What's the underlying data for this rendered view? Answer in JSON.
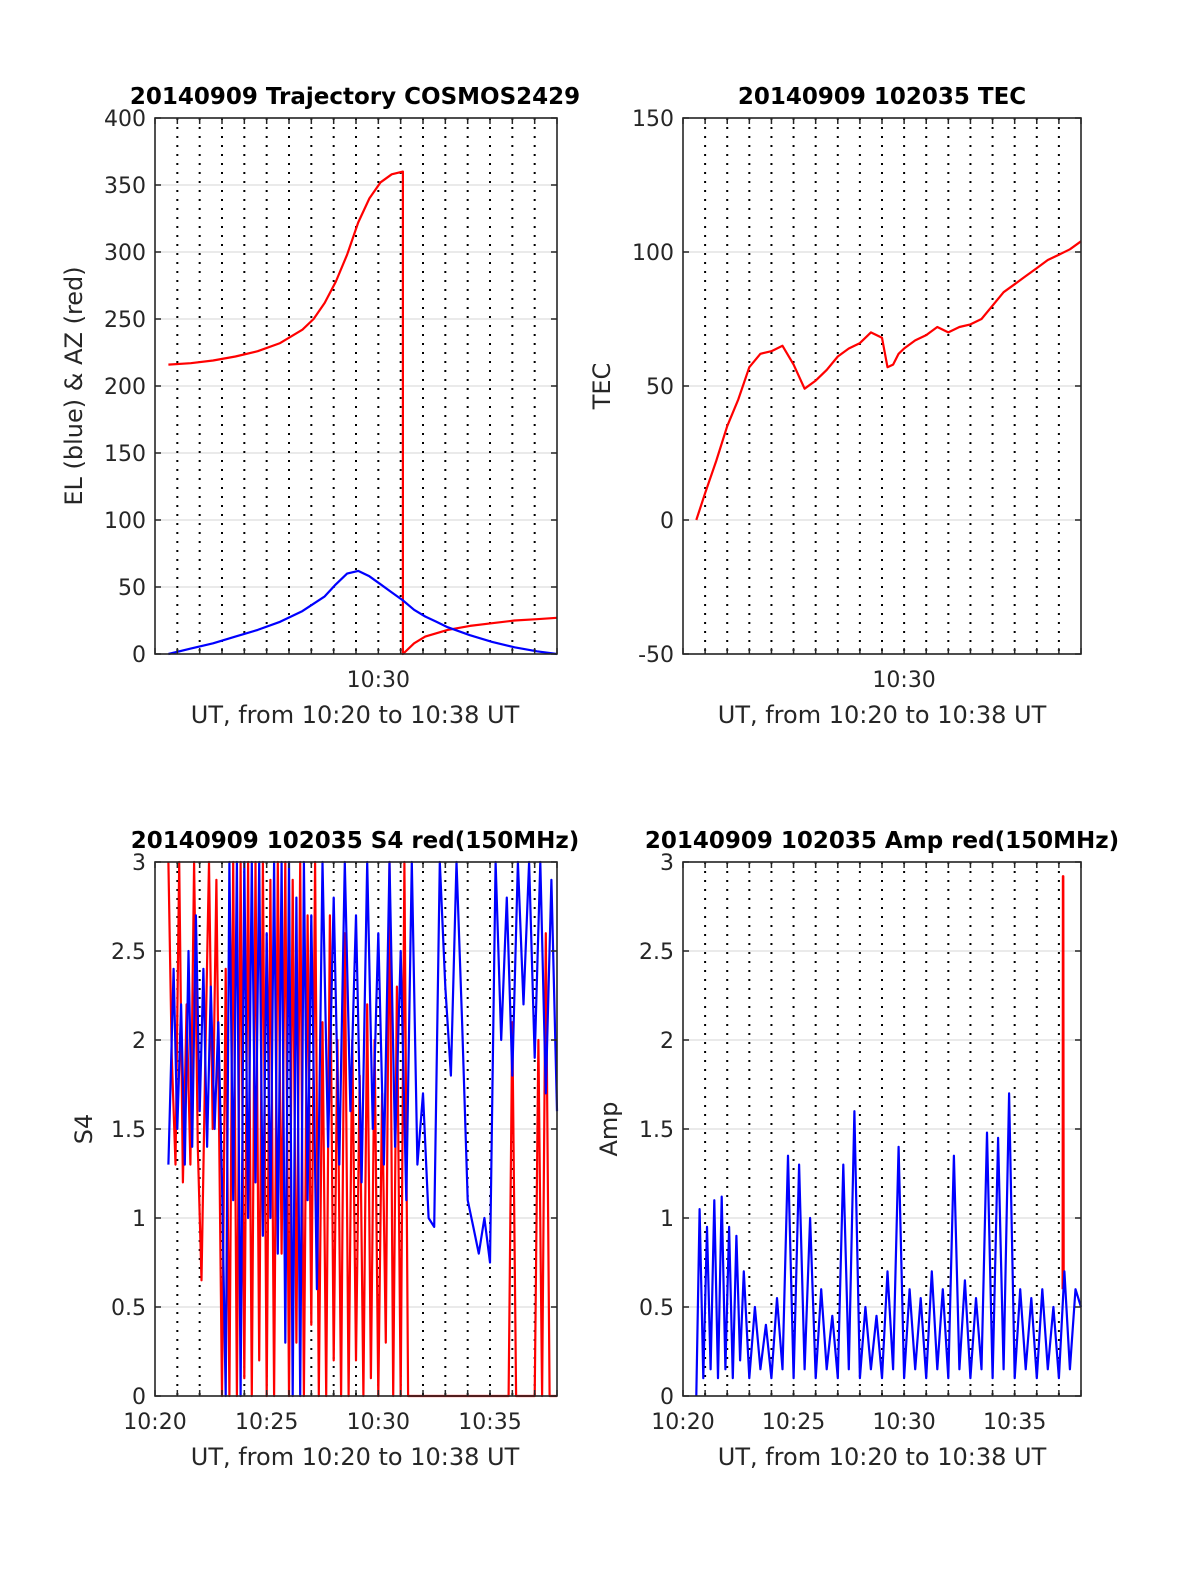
{
  "chart_data": [
    {
      "id": "trajectory",
      "type": "line",
      "title": "20140909 Trajectory COSMOS2429",
      "xlabel": "UT, from 10:20 to 10:38 UT",
      "ylabel": "EL (blue) & AZ (red)",
      "xlim": [
        "10:20",
        "10:38"
      ],
      "ylim": [
        0,
        400
      ],
      "yticks": [
        0,
        50,
        100,
        150,
        200,
        250,
        300,
        350,
        400
      ],
      "xtick_labels": [
        {
          "t": "10:30",
          "label": "10:30"
        }
      ],
      "grid": true,
      "series": [
        {
          "color": "#ff0000",
          "x": [
            "10:20:36",
            "10:21:36",
            "10:22:36",
            "10:23:36",
            "10:24:36",
            "10:25:36",
            "10:26:36",
            "10:27:06",
            "10:27:36",
            "10:28:06",
            "10:28:36",
            "10:29:06",
            "10:29:36",
            "10:30:06",
            "10:30:36",
            "10:31:06",
            "10:31:06",
            "10:31:36",
            "10:32:06",
            "10:33:06",
            "10:34:06",
            "10:35:06",
            "10:36:06",
            "10:37:06",
            "10:38:00"
          ],
          "values": [
            216,
            217,
            219,
            222,
            226,
            232,
            242,
            250,
            262,
            278,
            298,
            322,
            340,
            352,
            358,
            360,
            0,
            8,
            13,
            18,
            21,
            23,
            25,
            26,
            27
          ]
        },
        {
          "color": "#0000ff",
          "x": [
            "10:20:36",
            "10:21:36",
            "10:22:36",
            "10:23:36",
            "10:24:36",
            "10:25:36",
            "10:26:36",
            "10:27:36",
            "10:28:06",
            "10:28:36",
            "10:29:06",
            "10:29:36",
            "10:30:06",
            "10:30:36",
            "10:31:06",
            "10:31:36",
            "10:32:06",
            "10:32:36",
            "10:33:06",
            "10:34:06",
            "10:35:06",
            "10:36:06",
            "10:37:06",
            "10:38:00"
          ],
          "values": [
            0,
            4,
            8,
            13,
            18,
            24,
            32,
            43,
            52,
            60,
            62,
            58,
            52,
            46,
            40,
            33,
            28,
            24,
            20,
            14,
            9,
            5,
            2,
            0
          ]
        }
      ]
    },
    {
      "id": "tec",
      "type": "line",
      "title": "20140909 102035 TEC",
      "xlabel": "UT, from 10:20 to 10:38 UT",
      "ylabel": "TEC",
      "xlim": [
        "10:20",
        "10:38"
      ],
      "ylim": [
        -50,
        150
      ],
      "yticks": [
        -50,
        0,
        50,
        100,
        150
      ],
      "xtick_labels": [
        {
          "t": "10:30",
          "label": "10:30"
        }
      ],
      "grid": true,
      "series": [
        {
          "color": "#ff0000",
          "x": [
            "10:20:36",
            "10:21:00",
            "10:21:30",
            "10:22:00",
            "10:22:30",
            "10:23:00",
            "10:23:30",
            "10:24:00",
            "10:24:30",
            "10:25:00",
            "10:25:30",
            "10:26:00",
            "10:26:30",
            "10:27:00",
            "10:27:30",
            "10:28:00",
            "10:28:30",
            "10:29:00",
            "10:29:15",
            "10:29:30",
            "10:29:45",
            "10:30:00",
            "10:30:30",
            "10:31:00",
            "10:31:30",
            "10:32:00",
            "10:32:30",
            "10:33:00",
            "10:33:30",
            "10:34:00",
            "10:34:30",
            "10:35:00",
            "10:35:30",
            "10:36:00",
            "10:36:30",
            "10:37:00",
            "10:37:30",
            "10:38:00"
          ],
          "values": [
            0,
            10,
            22,
            35,
            45,
            57,
            62,
            63,
            65,
            58,
            49,
            52,
            56,
            61,
            64,
            66,
            70,
            68,
            57,
            58,
            62,
            64,
            67,
            69,
            72,
            70,
            72,
            73,
            75,
            80,
            85,
            88,
            91,
            94,
            97,
            99,
            101,
            104
          ]
        }
      ]
    },
    {
      "id": "s4",
      "type": "line",
      "title": "20140909 102035 S4 red(150MHz)",
      "xlabel": "UT, from 10:20 to 10:38 UT",
      "ylabel": "S4",
      "xlim": [
        "10:20",
        "10:38"
      ],
      "ylim": [
        0,
        3
      ],
      "yticks": [
        0,
        0.5,
        1,
        1.5,
        2,
        2.5,
        3
      ],
      "xtick_labels": [
        {
          "t": "10:20",
          "label": "10:20"
        },
        {
          "t": "10:25",
          "label": "10:25"
        },
        {
          "t": "10:30",
          "label": "10:30"
        },
        {
          "t": "10:35",
          "label": "10:35"
        }
      ],
      "grid": true,
      "series": [
        {
          "color": "#ff0000",
          "x": [
            "10:20:36",
            "10:20:45",
            "10:20:55",
            "10:21:05",
            "10:21:15",
            "10:21:25",
            "10:21:35",
            "10:21:45",
            "10:21:55",
            "10:22:05",
            "10:22:15",
            "10:22:25",
            "10:22:35",
            "10:22:45",
            "10:23:00",
            "10:23:10",
            "10:23:20",
            "10:23:30",
            "10:23:40",
            "10:23:50",
            "10:24:00",
            "10:24:10",
            "10:24:20",
            "10:24:30",
            "10:24:40",
            "10:24:50",
            "10:25:00",
            "10:25:10",
            "10:25:20",
            "10:25:30",
            "10:25:40",
            "10:25:50",
            "10:26:00",
            "10:26:10",
            "10:26:20",
            "10:26:30",
            "10:26:40",
            "10:26:50",
            "10:27:00",
            "10:27:10",
            "10:27:20",
            "10:27:30",
            "10:27:40",
            "10:27:50",
            "10:28:00",
            "10:28:10",
            "10:28:20",
            "10:28:30",
            "10:28:40",
            "10:28:50",
            "10:29:00",
            "10:29:10",
            "10:29:20",
            "10:29:30",
            "10:29:40",
            "10:29:50",
            "10:30:00",
            "10:30:10",
            "10:30:20",
            "10:30:30",
            "10:30:40",
            "10:30:50",
            "10:31:00",
            "10:31:10",
            "10:31:20",
            "10:31:30",
            "10:31:40",
            "10:31:50",
            "10:32:00",
            "10:33:00",
            "10:34:00",
            "10:35:00",
            "10:35:50",
            "10:36:00",
            "10:36:10",
            "10:36:20",
            "10:37:00",
            "10:37:10",
            "10:37:20",
            "10:37:30",
            "10:37:40",
            "10:38:00"
          ],
          "values": [
            3.0,
            1.9,
            1.3,
            3.0,
            1.2,
            2.2,
            1.3,
            3.0,
            1.4,
            0.65,
            1.9,
            3.0,
            1.5,
            2.9,
            0,
            2.4,
            0,
            3.0,
            0,
            3.0,
            0.1,
            3.0,
            0,
            3.0,
            0.2,
            3.0,
            0,
            2.9,
            0,
            3.0,
            0.8,
            3.0,
            0,
            2.9,
            0.3,
            3.0,
            0,
            2.7,
            0.4,
            3.0,
            0,
            2.1,
            0,
            2.7,
            0.2,
            2.0,
            0,
            2.6,
            0,
            2.0,
            0.2,
            1.8,
            0,
            2.2,
            0.1,
            2.0,
            0,
            1.7,
            0.3,
            3.0,
            0,
            2.3,
            0,
            3.0,
            0,
            0,
            0,
            0,
            0,
            0,
            0,
            0,
            0,
            2.1,
            0,
            0,
            0,
            2.0,
            0,
            2.6,
            0,
            0
          ]
        },
        {
          "color": "#0000ff",
          "x": [
            "10:20:36",
            "10:20:50",
            "10:21:00",
            "10:21:10",
            "10:21:20",
            "10:21:30",
            "10:21:40",
            "10:21:50",
            "10:22:00",
            "10:22:10",
            "10:22:20",
            "10:22:30",
            "10:22:40",
            "10:22:50",
            "10:23:00",
            "10:23:10",
            "10:23:20",
            "10:23:30",
            "10:23:40",
            "10:23:50",
            "10:24:00",
            "10:24:10",
            "10:24:20",
            "10:24:30",
            "10:24:40",
            "10:24:50",
            "10:25:00",
            "10:25:10",
            "10:25:20",
            "10:25:30",
            "10:25:40",
            "10:25:50",
            "10:26:00",
            "10:26:10",
            "10:26:20",
            "10:26:30",
            "10:26:40",
            "10:26:50",
            "10:27:00",
            "10:27:15",
            "10:27:30",
            "10:27:45",
            "10:28:00",
            "10:28:15",
            "10:28:30",
            "10:28:45",
            "10:29:00",
            "10:29:15",
            "10:29:30",
            "10:29:45",
            "10:30:00",
            "10:30:15",
            "10:30:30",
            "10:30:45",
            "10:31:00",
            "10:31:15",
            "10:31:30",
            "10:31:45",
            "10:32:00",
            "10:32:15",
            "10:32:30",
            "10:32:45",
            "10:33:00",
            "10:33:15",
            "10:33:30",
            "10:33:45",
            "10:34:00",
            "10:34:15",
            "10:34:30",
            "10:34:45",
            "10:35:00",
            "10:35:15",
            "10:35:30",
            "10:35:45",
            "10:36:00",
            "10:36:15",
            "10:36:30",
            "10:36:45",
            "10:37:00",
            "10:37:15",
            "10:37:30",
            "10:37:45",
            "10:38:00"
          ],
          "values": [
            1.3,
            2.4,
            1.5,
            2.2,
            1.3,
            2.5,
            1.4,
            2.7,
            1.6,
            2.4,
            1.4,
            2.3,
            1.5,
            2.1,
            1.2,
            0,
            3.0,
            1.1,
            3.0,
            0,
            3.0,
            1.0,
            3.0,
            1.2,
            3.0,
            0.9,
            2.6,
            1.0,
            3.0,
            0.8,
            3.0,
            0.3,
            3.0,
            0,
            2.8,
            0,
            3.0,
            1.1,
            2.7,
            0.6,
            3.0,
            1.4,
            2.8,
            1.3,
            3.0,
            1.6,
            2.7,
            1.2,
            3.0,
            1.5,
            2.6,
            1.3,
            3.0,
            1.4,
            2.5,
            1.1,
            3.0,
            1.3,
            1.7,
            1.0,
            0.95,
            3.0,
            2.3,
            1.8,
            3.0,
            2.1,
            1.1,
            0.95,
            0.8,
            1.0,
            0.75,
            3.0,
            2.0,
            2.8,
            1.8,
            3.0,
            2.2,
            3.0,
            1.9,
            3.0,
            1.7,
            2.9,
            1.6
          ]
        }
      ]
    },
    {
      "id": "amp",
      "type": "line",
      "title": "20140909 102035 Amp red(150MHz)",
      "xlabel": "UT, from 10:20 to 10:38 UT",
      "ylabel": "Amp",
      "xlim": [
        "10:20",
        "10:38"
      ],
      "ylim": [
        0,
        3
      ],
      "yticks": [
        0,
        0.5,
        1,
        1.5,
        2,
        2.5,
        3
      ],
      "xtick_labels": [
        {
          "t": "10:20",
          "label": "10:20"
        },
        {
          "t": "10:25",
          "label": "10:25"
        },
        {
          "t": "10:30",
          "label": "10:30"
        },
        {
          "t": "10:35",
          "label": "10:35"
        }
      ],
      "grid": true,
      "series": [
        {
          "color": "#ff0000",
          "x": [
            "10:37:10",
            "10:37:11",
            "10:37:12",
            "10:37:13"
          ],
          "values": [
            0.6,
            2.92,
            2.92,
            0.6
          ]
        },
        {
          "color": "#0000ff",
          "x": [
            "10:20:36",
            "10:20:45",
            "10:20:55",
            "10:21:05",
            "10:21:15",
            "10:21:25",
            "10:21:35",
            "10:21:45",
            "10:21:55",
            "10:22:05",
            "10:22:15",
            "10:22:25",
            "10:22:35",
            "10:22:45",
            "10:23:00",
            "10:23:15",
            "10:23:30",
            "10:23:45",
            "10:24:00",
            "10:24:15",
            "10:24:30",
            "10:24:45",
            "10:25:00",
            "10:25:15",
            "10:25:30",
            "10:25:45",
            "10:26:00",
            "10:26:15",
            "10:26:30",
            "10:26:45",
            "10:27:00",
            "10:27:15",
            "10:27:30",
            "10:27:45",
            "10:28:00",
            "10:28:15",
            "10:28:30",
            "10:28:45",
            "10:29:00",
            "10:29:15",
            "10:29:30",
            "10:29:45",
            "10:30:00",
            "10:30:15",
            "10:30:30",
            "10:30:45",
            "10:31:00",
            "10:31:15",
            "10:31:30",
            "10:31:45",
            "10:32:00",
            "10:32:15",
            "10:32:30",
            "10:32:45",
            "10:33:00",
            "10:33:15",
            "10:33:30",
            "10:33:45",
            "10:34:00",
            "10:34:15",
            "10:34:30",
            "10:34:45",
            "10:35:00",
            "10:35:15",
            "10:35:30",
            "10:35:45",
            "10:36:00",
            "10:36:15",
            "10:36:30",
            "10:36:45",
            "10:37:00",
            "10:37:15",
            "10:37:30",
            "10:37:45",
            "10:38:00"
          ],
          "values": [
            0.0,
            1.05,
            0.1,
            0.95,
            0.15,
            1.1,
            0.1,
            1.12,
            0.15,
            0.95,
            0.1,
            0.9,
            0.2,
            0.7,
            0.1,
            0.5,
            0.15,
            0.4,
            0.1,
            0.55,
            0.15,
            1.35,
            0.1,
            1.3,
            0.15,
            1.0,
            0.1,
            0.6,
            0.15,
            0.45,
            0.1,
            1.3,
            0.15,
            1.6,
            0.1,
            0.5,
            0.15,
            0.45,
            0.1,
            0.7,
            0.15,
            1.4,
            0.1,
            0.6,
            0.15,
            0.55,
            0.1,
            0.7,
            0.15,
            0.6,
            0.1,
            1.35,
            0.15,
            0.65,
            0.1,
            0.55,
            0.15,
            1.48,
            0.1,
            1.45,
            0.15,
            1.7,
            0.1,
            0.6,
            0.15,
            0.55,
            0.1,
            0.6,
            0.15,
            0.5,
            0.1,
            0.7,
            0.15,
            0.6,
            0.5
          ]
        }
      ]
    }
  ]
}
